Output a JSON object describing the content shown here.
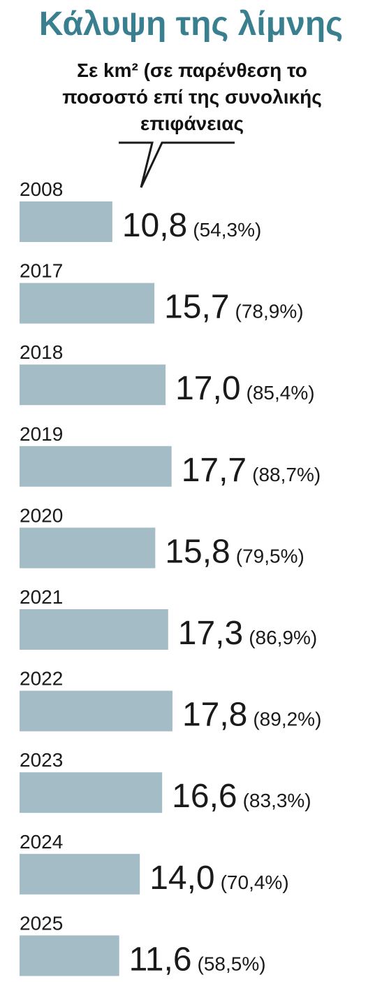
{
  "title": "Κάλυψη της λίμνης",
  "subtitle": "Σε km² (σε παρένθεση το ποσοστό επί της συνολικής επιφάνειας",
  "colors": {
    "title": "#3a7f8f",
    "bar": "#a3bcc6",
    "text": "#1a1a1a"
  },
  "chart_data": {
    "type": "bar",
    "orientation": "horizontal",
    "categories": [
      "2008",
      "2017",
      "2018",
      "2019",
      "2020",
      "2021",
      "2022",
      "2023",
      "2024",
      "2025"
    ],
    "values": [
      10.8,
      15.7,
      17.0,
      17.7,
      15.8,
      17.3,
      17.8,
      16.6,
      14.0,
      11.6
    ],
    "value_labels": [
      "10,8",
      "15,7",
      "17,0",
      "17,7",
      "15,8",
      "17,3",
      "17,8",
      "16,6",
      "14,0",
      "11,6"
    ],
    "percent_labels": [
      "(54,3%)",
      "(78,9%)",
      "(85,4%)",
      "(88,7%)",
      "(79,5%)",
      "(86,9%)",
      "(89,2%)",
      "(83,3%)",
      "(70,4%)",
      "(58,5%)"
    ],
    "title": "Κάλυψη της λίμνης",
    "xlabel": "",
    "ylabel": "",
    "grid": false,
    "legend": "none"
  }
}
